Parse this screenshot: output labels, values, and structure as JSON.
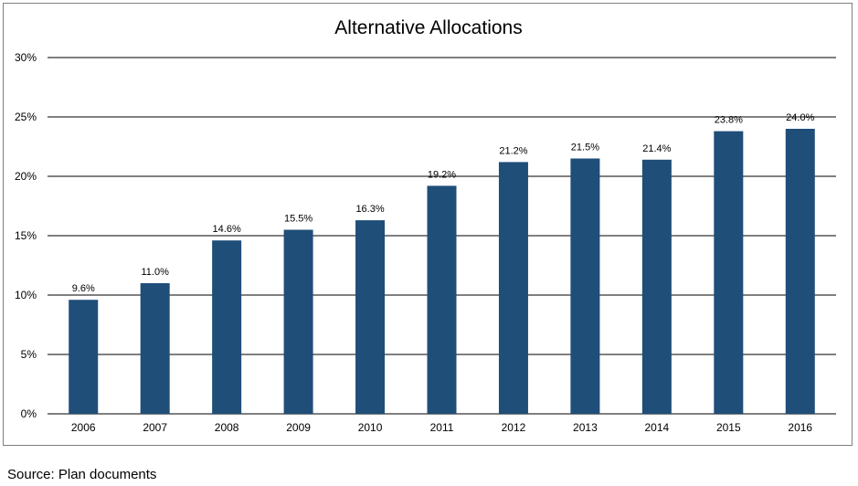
{
  "source_note": "Source: Plan documents",
  "chart_data": {
    "type": "bar",
    "title": "Alternative Allocations",
    "xlabel": "",
    "ylabel": "",
    "categories": [
      "2006",
      "2007",
      "2008",
      "2009",
      "2010",
      "2011",
      "2012",
      "2013",
      "2014",
      "2015",
      "2016"
    ],
    "values": [
      9.6,
      11.0,
      14.6,
      15.5,
      16.3,
      19.2,
      21.2,
      21.5,
      21.4,
      23.8,
      24.0
    ],
    "value_labels": [
      "9.6%",
      "11.0%",
      "14.6%",
      "15.5%",
      "16.3%",
      "19.2%",
      "21.2%",
      "21.5%",
      "21.4%",
      "23.8%",
      "24.0%"
    ],
    "ylim": [
      0,
      30
    ],
    "y_ticks": [
      0,
      5,
      10,
      15,
      20,
      25,
      30
    ],
    "y_tick_labels": [
      "0%",
      "5%",
      "10%",
      "15%",
      "20%",
      "25%",
      "30%"
    ],
    "grid": true,
    "legend": "none",
    "bar_color": "#1f4e79"
  }
}
